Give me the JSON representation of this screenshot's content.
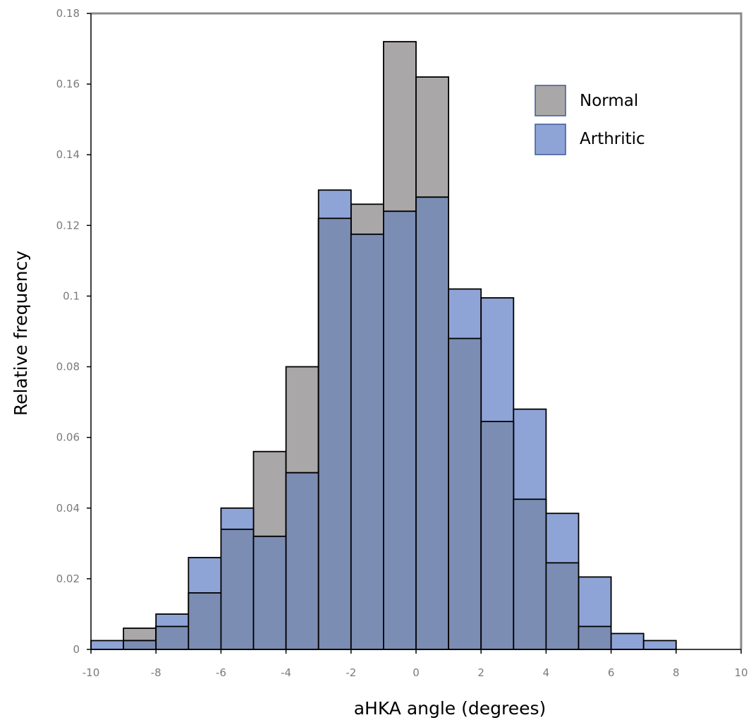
{
  "chart_data": {
    "type": "bar",
    "title": "",
    "xlabel": "aHKA angle (degrees)",
    "ylabel": "Relative frequency",
    "xlim": [
      -10,
      10
    ],
    "ylim": [
      0,
      0.18
    ],
    "x_ticks": [
      "-10",
      "-8",
      "-6",
      "-4",
      "-2",
      "0",
      "2",
      "4",
      "6",
      "8",
      "10"
    ],
    "y_ticks": [
      "0",
      "0.02",
      "0.04",
      "0.06",
      "0.08",
      "0.1",
      "0.12",
      "0.14",
      "0.16",
      "0.18"
    ],
    "bins": [
      [
        -10,
        -9
      ],
      [
        -9,
        -8
      ],
      [
        -8,
        -7
      ],
      [
        -7,
        -6
      ],
      [
        -6,
        -5
      ],
      [
        -5,
        -4
      ],
      [
        -4,
        -3
      ],
      [
        -3,
        -2
      ],
      [
        -2,
        -1
      ],
      [
        -1,
        0
      ],
      [
        0,
        1
      ],
      [
        1,
        2
      ],
      [
        2,
        3
      ],
      [
        3,
        4
      ],
      [
        4,
        5
      ],
      [
        5,
        6
      ],
      [
        6,
        7
      ],
      [
        7,
        8
      ]
    ],
    "series": [
      {
        "name": "Normal",
        "color": "#a9a7a7",
        "values": [
          0,
          0.006,
          0.0065,
          0.016,
          0.034,
          0.056,
          0.08,
          0.122,
          0.126,
          0.172,
          0.162,
          0.088,
          0.0645,
          0.0425,
          0.0245,
          0.0065,
          0,
          0
        ]
      },
      {
        "name": "Arthritic",
        "color": "#8fa4d6",
        "values": [
          0.0025,
          0.0025,
          0.01,
          0.026,
          0.04,
          0.032,
          0.05,
          0.13,
          0.1175,
          0.124,
          0.128,
          0.102,
          0.0995,
          0.068,
          0.0385,
          0.0205,
          0.0045,
          0.0025
        ]
      }
    ],
    "overlap_color": "#7c8db3",
    "legend": {
      "position": "top-right",
      "items": [
        {
          "label": "Normal",
          "color": "#a9a7a7"
        },
        {
          "label": "Arthritic",
          "color": "#8fa4d6"
        }
      ]
    },
    "grid": false
  }
}
